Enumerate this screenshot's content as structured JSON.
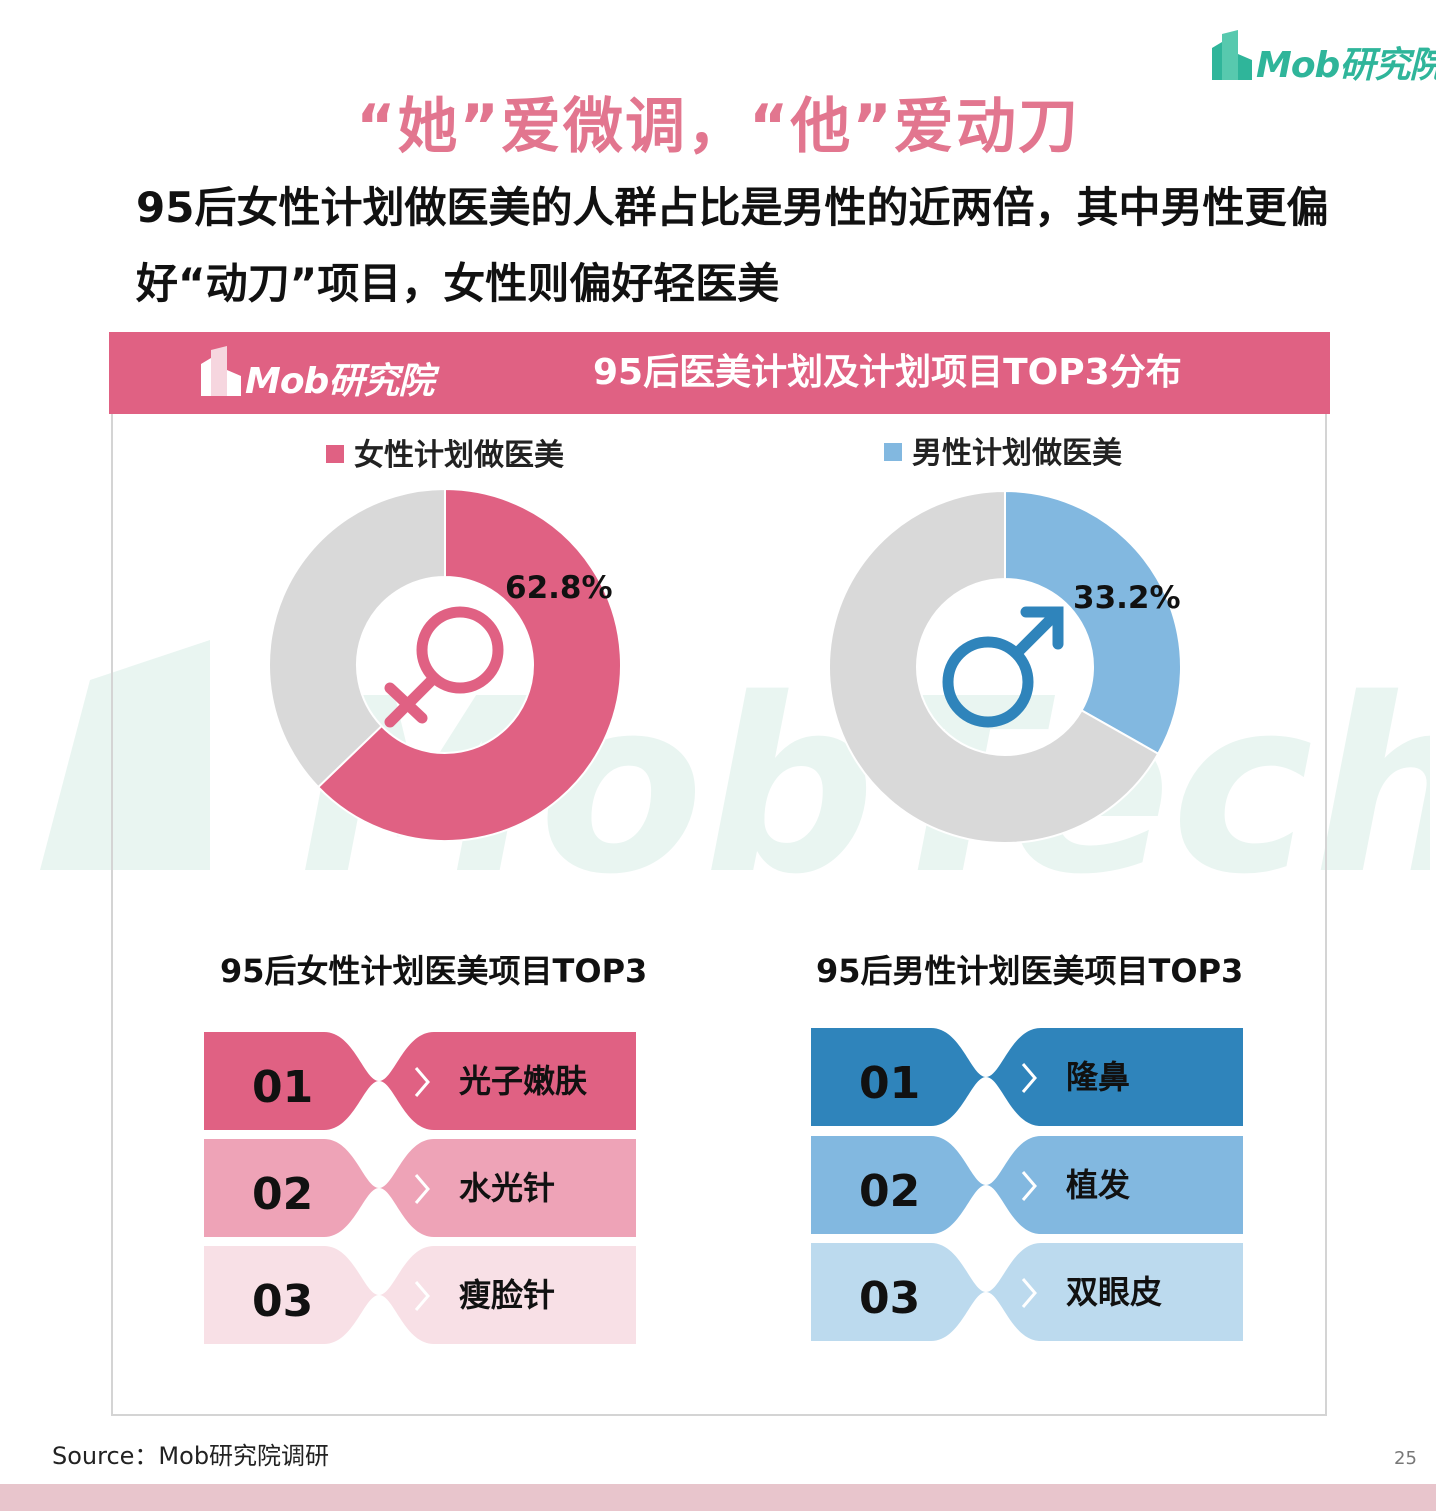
{
  "brand": {
    "name": "Mob研究院"
  },
  "title": "“她”爱微调，“他”爱动刀",
  "subtitle": "95后女性计划做医美的人群占比是男性的近两倍，其中男性更偏好“动刀”项目，女性则偏好轻医美",
  "panel_title": "95后医美计划及计划项目TOP3分布",
  "watermark": "MobTech袤博",
  "colors": {
    "female": "#e06183",
    "male": "#82b8e0",
    "rest": "#d9d9d9",
    "title": "#e2768f",
    "brand": "#2fb59a"
  },
  "icons": {
    "female": "female-symbol-icon",
    "male": "male-symbol-icon"
  },
  "chart_data": [
    {
      "type": "pie",
      "donut": true,
      "legend": "女性计划做医美",
      "values": [
        62.8,
        37.2
      ],
      "value_label": "62.8%",
      "colors": [
        "#e06183",
        "#d9d9d9"
      ]
    },
    {
      "type": "pie",
      "donut": true,
      "legend": "男性计划做医美",
      "values": [
        33.2,
        66.8
      ],
      "value_label": "33.2%",
      "colors": [
        "#82b8e0",
        "#d9d9d9"
      ]
    }
  ],
  "female_top3": {
    "title": "95后女性计划医美项目TOP3",
    "items": [
      {
        "rank": "01",
        "label": "光子嫩肤",
        "color": "#e06183"
      },
      {
        "rank": "02",
        "label": "水光针",
        "color": "#eea3b7"
      },
      {
        "rank": "03",
        "label": "瘦脸针",
        "color": "#f8e0e6"
      }
    ]
  },
  "male_top3": {
    "title": "95后男性计划医美项目TOP3",
    "items": [
      {
        "rank": "01",
        "label": "隆鼻",
        "color": "#2f84bb"
      },
      {
        "rank": "02",
        "label": "植发",
        "color": "#82b8e0"
      },
      {
        "rank": "03",
        "label": "双眼皮",
        "color": "#bcdaee"
      }
    ]
  },
  "source": "Source：Mob研究院调研",
  "page_number": "25"
}
